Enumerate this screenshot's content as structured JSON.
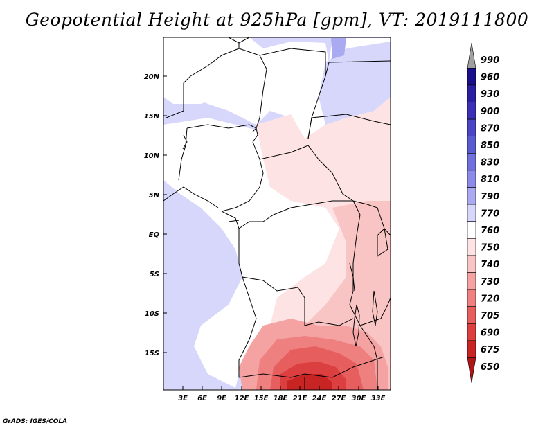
{
  "title": "Geopotential Height at 925hPa [gpm], VT: 2019111800",
  "footer": "GrADS: IGES/COLA",
  "map": {
    "lat_labels": [
      "20N",
      "15N",
      "10N",
      "5N",
      "EQ",
      "5S",
      "10S",
      "15S"
    ],
    "lon_labels": [
      "3E",
      "6E",
      "9E",
      "12E",
      "15E",
      "18E",
      "21E",
      "24E",
      "27E",
      "30E",
      "33E"
    ]
  },
  "colorbar": {
    "levels": [
      "990",
      "960",
      "930",
      "900",
      "870",
      "850",
      "830",
      "810",
      "790",
      "770",
      "760",
      "750",
      "740",
      "730",
      "720",
      "705",
      "690",
      "675",
      "650"
    ],
    "colors": [
      "#a0a0a0",
      "#1a0f8a",
      "#2a1fa0",
      "#3a30b5",
      "#4a45c5",
      "#5a5ad0",
      "#7070dd",
      "#8c8ce8",
      "#aaaaf0",
      "#d7d7fb",
      "#ffffff",
      "#fde3e3",
      "#f9c4c4",
      "#f4a2a2",
      "#ee8080",
      "#e65e5e",
      "#db3f3f",
      "#c92424",
      "#b01515"
    ]
  },
  "colors": {
    "light_blue": "#d7d7fb",
    "pale_pink": "#fde3e3",
    "pink": "#f9c4c4",
    "red": "#e65e5e",
    "dark_red": "#c92424"
  }
}
